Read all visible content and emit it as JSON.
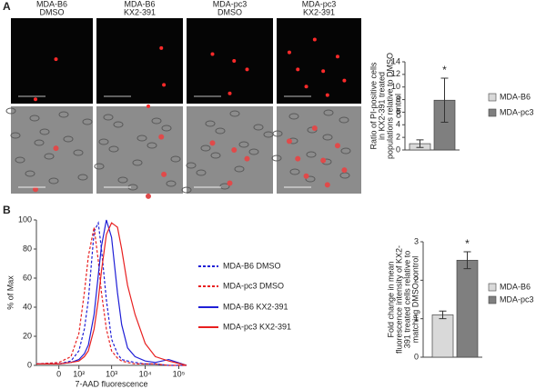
{
  "panels": [
    "A",
    "B"
  ],
  "images": {
    "columns": [
      [
        "MDA-B6",
        "DMSO"
      ],
      [
        "MDA-B6",
        "KX2-391"
      ],
      [
        "MDA-pc3",
        "DMSO"
      ],
      [
        "MDA-pc3",
        "KX2-391"
      ]
    ]
  },
  "chart_data": [
    {
      "type": "bar",
      "ylabel": [
        "Ratio of PI-positive cells",
        "in KX2-391 treated",
        "populations relative to DMSO",
        "control"
      ],
      "series": [
        {
          "name": "MDA-B6",
          "color": "#d9d9d9",
          "values": [
            1.0
          ],
          "errors": [
            0.6
          ]
        },
        {
          "name": "MDA-pc3",
          "color": "#7f7f7f",
          "values": [
            7.9
          ],
          "errors": [
            3.5
          ]
        }
      ],
      "annotation": "*",
      "ylim": [
        0,
        14
      ],
      "yticks": [
        0,
        2,
        4,
        6,
        8,
        10,
        12,
        14
      ]
    },
    {
      "type": "line",
      "xscale": "biexponential",
      "xlabel": "7-AAD fluorescence",
      "ylabel": "% of Max",
      "x": [
        -120,
        0,
        50,
        100,
        150,
        200,
        300,
        400,
        500,
        700,
        1000,
        1500,
        2000,
        3000,
        5000,
        10000,
        20000,
        50000,
        170000
      ],
      "series": [
        {
          "name": "MDA-B6 DMSO",
          "color": "#1f1fd6",
          "dash": true,
          "values": [
            1,
            1,
            3,
            10,
            25,
            45,
            92,
            98,
            80,
            45,
            18,
            8,
            4,
            3,
            2,
            1,
            1,
            0,
            0
          ]
        },
        {
          "name": "MDA-pc3 DMSO",
          "color": "#e82020",
          "dash": true,
          "values": [
            1,
            2,
            6,
            22,
            50,
            75,
            95,
            72,
            50,
            25,
            10,
            5,
            3,
            2,
            1,
            1,
            1,
            0,
            0
          ]
        },
        {
          "name": "MDA-B6 KX2-391",
          "color": "#1f1fd6",
          "dash": false,
          "values": [
            1,
            1,
            2,
            4,
            8,
            14,
            35,
            62,
            82,
            100,
            88,
            50,
            28,
            12,
            6,
            3,
            2,
            4,
            0
          ]
        },
        {
          "name": "MDA-pc3 KX2-391",
          "color": "#e82020",
          "dash": false,
          "values": [
            1,
            1,
            2,
            3,
            6,
            10,
            25,
            45,
            65,
            90,
            98,
            95,
            80,
            55,
            35,
            15,
            6,
            3,
            0
          ]
        }
      ],
      "xlim": [
        -120,
        170000
      ],
      "xticks": [
        0,
        {
          "value": 100,
          "label": "10²"
        },
        {
          "value": 1000,
          "label": "10³"
        },
        {
          "value": 10000,
          "label": "10⁴"
        },
        {
          "value": 100000,
          "label": "10⁵"
        }
      ],
      "ylim": [
        0,
        100
      ],
      "yticks": [
        0,
        20,
        40,
        60,
        80,
        100
      ]
    },
    {
      "type": "bar",
      "ylabel": [
        "Fold change in mean",
        "fluorescence intensity of KX2-",
        "391 treated cells relative to",
        "matching DMSO control"
      ],
      "series": [
        {
          "name": "MDA-B6",
          "color": "#d9d9d9",
          "values": [
            1.1
          ],
          "errors": [
            0.1
          ]
        },
        {
          "name": "MDA-pc3",
          "color": "#7f7f7f",
          "values": [
            2.52
          ],
          "errors": [
            0.22
          ]
        }
      ],
      "annotation": "*",
      "ylim": [
        0,
        3
      ],
      "yticks": [
        0,
        1,
        2,
        3
      ]
    }
  ]
}
